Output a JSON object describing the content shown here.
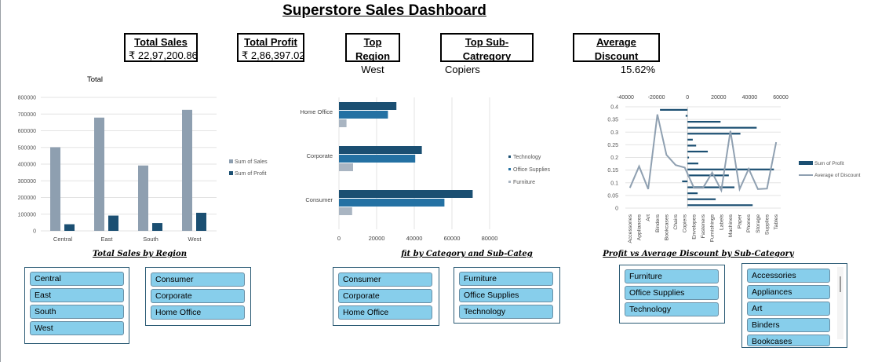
{
  "dashboard": {
    "title": "Superstore Sales Dashboard"
  },
  "kpis": {
    "total_sales": {
      "label": "Total Sales",
      "value": "₹ 22,97,200.86"
    },
    "total_profit": {
      "label": "Total Profit",
      "value": "₹ 2,86,397.02"
    },
    "top_region": {
      "label": "Top Region",
      "value": "West"
    },
    "top_subcategory": {
      "label": "Top Sub-Catregory",
      "value": "Copiers"
    },
    "avg_discount": {
      "label": "Average Discount",
      "value": "15.62%"
    }
  },
  "chart_titles": {
    "region": "Total Sales by Region",
    "category": "fit by Category and Sub-Categ",
    "discount": "Profit vs Average Discount by Sub-Category"
  },
  "slicers": {
    "region": [
      "Central",
      "East",
      "South",
      "West"
    ],
    "segment_1": [
      "Consumer",
      "Corporate",
      "Home Office"
    ],
    "segment_2": [
      "Consumer",
      "Corporate",
      "Home Office"
    ],
    "category_1": [
      "Furniture",
      "Office Supplies",
      "Technology"
    ],
    "category_2": [
      "Furniture",
      "Office Supplies",
      "Technology"
    ],
    "subcategory": [
      "Accessories",
      "Appliances",
      "Art",
      "Binders",
      "Bookcases"
    ]
  },
  "colors": {
    "dark_blue": "#1b4f72",
    "mid_blue": "#2471a3",
    "gray_blue": "#8e9fb0",
    "light_gray": "#a9b5c2",
    "slicer_fill": "#87ceeb"
  },
  "chart_data": [
    {
      "type": "bar",
      "title": "Total",
      "categories": [
        "Central",
        "East",
        "South",
        "West"
      ],
      "series": [
        {
          "name": "Sum of Sales",
          "values": [
            501240,
            678781,
            391722,
            725458
          ]
        },
        {
          "name": "Sum of Profit",
          "values": [
            39706,
            91523,
            46749,
            108418
          ]
        }
      ],
      "ylim": [
        0,
        800000
      ],
      "yticks": [
        "0",
        "100000",
        "200000",
        "300000",
        "400000",
        "500000",
        "600000",
        "700000",
        "800000"
      ],
      "legend": "right"
    },
    {
      "type": "bar",
      "orientation": "horizontal",
      "categories": [
        "Home Office",
        "Corporate",
        "Consumer"
      ],
      "series": [
        {
          "name": "Technology",
          "values": [
            30500,
            44000,
            71000
          ]
        },
        {
          "name": "Office Supplies",
          "values": [
            26000,
            40500,
            56000
          ]
        },
        {
          "name": "Furniture",
          "values": [
            4000,
            7500,
            7000
          ]
        }
      ],
      "xlim": [
        0,
        80000
      ],
      "xticks": [
        "0",
        "20000",
        "40000",
        "60000",
        "80000"
      ],
      "legend": "right"
    },
    {
      "type": "bar+line",
      "categories": [
        "Accessories",
        "Appliances",
        "Art",
        "Binders",
        "Bookcases",
        "Chairs",
        "Copiers",
        "Envelopes",
        "Fasteners",
        "Furnishings",
        "Labels",
        "Machines",
        "Paper",
        "Phones",
        "Storage",
        "Supplies",
        "Tables"
      ],
      "series": [
        {
          "name": "Sum of Profit",
          "axis": "top",
          "values": [
            41937,
            18138,
            6528,
            30222,
            -3473,
            26590,
            55618,
            6964,
            950,
            13059,
            5546,
            3385,
            34054,
            44516,
            21279,
            -1189,
            -17725
          ]
        },
        {
          "name": "Average of Discount",
          "axis": "left",
          "values": [
            0.08,
            0.165,
            0.075,
            0.37,
            0.21,
            0.17,
            0.16,
            0.08,
            0.08,
            0.14,
            0.07,
            0.305,
            0.075,
            0.155,
            0.075,
            0.077,
            0.26
          ]
        }
      ],
      "profit_axis": [
        -40000,
        60000
      ],
      "profit_ticks": [
        "-40000",
        "-20000",
        "0",
        "20000",
        "40000",
        "60000"
      ],
      "discount_axis": [
        0,
        0.4
      ],
      "discount_ticks": [
        "0",
        "0.05",
        "0.1",
        "0.15",
        "0.2",
        "0.25",
        "0.3",
        "0.35",
        "0.4"
      ],
      "legend": "right"
    }
  ]
}
